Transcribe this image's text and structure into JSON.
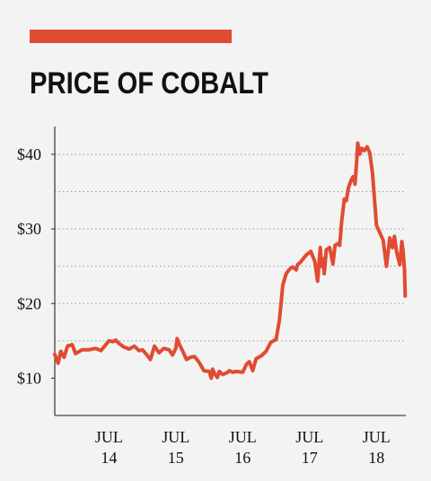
{
  "chart_data": {
    "type": "line",
    "title": "PRICE OF COBALT",
    "xlabel": "",
    "ylabel": "",
    "accent_color": "#e14b32",
    "line_color": "#e14b32",
    "ylim": [
      5,
      43
    ],
    "y_ticks": [
      {
        "value": 10,
        "label": "$10"
      },
      {
        "value": 20,
        "label": "$20"
      },
      {
        "value": 30,
        "label": "$30"
      },
      {
        "value": 40,
        "label": "$40"
      }
    ],
    "y_grid": [
      15,
      20,
      25,
      30,
      35,
      40
    ],
    "x_ticks": [
      {
        "month": "JUL",
        "year": "14",
        "date": 2014.5
      },
      {
        "month": "JUL",
        "year": "15",
        "date": 2015.5
      },
      {
        "month": "JUL",
        "year": "16",
        "date": 2016.5
      },
      {
        "month": "JUL",
        "year": "17",
        "date": 2017.5
      },
      {
        "month": "JUL",
        "year": "18",
        "date": 2018.5
      }
    ],
    "xlim": [
      2013.69,
      2018.94
    ],
    "series": [
      {
        "x": [
          2013.69,
          2013.74,
          2013.78,
          2013.83,
          2013.88,
          2013.95,
          2014.0,
          2014.1,
          2014.2,
          2014.3,
          2014.38,
          2014.5,
          2014.56,
          2014.6,
          2014.62,
          2014.66,
          2014.72,
          2014.8,
          2014.88,
          2014.95,
          2015.0,
          2015.06,
          2015.12,
          2015.18,
          2015.25,
          2015.32,
          2015.4,
          2015.45,
          2015.5,
          2015.52,
          2015.55,
          2015.6,
          2015.66,
          2015.72,
          2015.78,
          2015.85,
          2015.92,
          2016.0,
          2016.03,
          2016.05,
          2016.08,
          2016.12,
          2016.15,
          2016.2,
          2016.26,
          2016.3,
          2016.35,
          2016.4,
          2016.5,
          2016.56,
          2016.6,
          2016.65,
          2016.7,
          2016.78,
          2016.85,
          2016.92,
          2017.0,
          2017.05,
          2017.1,
          2017.15,
          2017.2,
          2017.25,
          2017.3,
          2017.32,
          2017.36,
          2017.45,
          2017.52,
          2017.58,
          2017.62,
          2017.66,
          2017.68,
          2017.7,
          2017.72,
          2017.75,
          2017.8,
          2017.85,
          2017.88,
          2017.92,
          2017.95,
          2017.98,
          2018.02,
          2018.05,
          2018.08,
          2018.12,
          2018.15,
          2018.18,
          2018.2,
          2018.22,
          2018.25,
          2018.28,
          2018.32,
          2018.36,
          2018.4,
          2018.44,
          2018.48,
          2018.5,
          2018.55,
          2018.6,
          2018.65,
          2018.7,
          2018.74,
          2018.77,
          2018.8,
          2018.85,
          2018.88,
          2018.9,
          2018.92,
          2018.93
        ],
        "y": [
          13.2,
          12.0,
          13.6,
          12.8,
          14.3,
          14.5,
          13.3,
          13.8,
          13.8,
          14.0,
          13.7,
          15.0,
          14.9,
          15.1,
          14.9,
          14.6,
          14.2,
          13.9,
          14.3,
          13.7,
          13.8,
          13.2,
          12.5,
          14.3,
          13.4,
          14.0,
          13.8,
          13.1,
          14.0,
          15.3,
          14.6,
          13.7,
          12.5,
          12.8,
          12.9,
          12.1,
          11.0,
          10.9,
          10.0,
          11.2,
          10.6,
          10.1,
          10.9,
          10.5,
          10.7,
          11.0,
          10.8,
          10.9,
          10.8,
          11.9,
          12.2,
          11.0,
          12.6,
          13.0,
          13.6,
          14.8,
          15.2,
          17.8,
          22.5,
          24.0,
          24.6,
          24.9,
          24.5,
          25.2,
          25.5,
          26.5,
          27.0,
          25.6,
          23.0,
          27.5,
          25.0,
          26.0,
          24.0,
          27.2,
          27.5,
          25.3,
          27.8,
          28.0,
          27.8,
          31.0,
          34.0,
          33.8,
          35.5,
          36.5,
          37.0,
          36.0,
          38.5,
          41.5,
          40.0,
          40.8,
          40.5,
          41.0,
          40.2,
          37.5,
          33.0,
          30.5,
          29.5,
          28.5,
          25.0,
          28.8,
          27.5,
          29.0,
          27.0,
          25.2,
          28.3,
          27.0,
          24.5,
          21.0
        ]
      }
    ]
  }
}
